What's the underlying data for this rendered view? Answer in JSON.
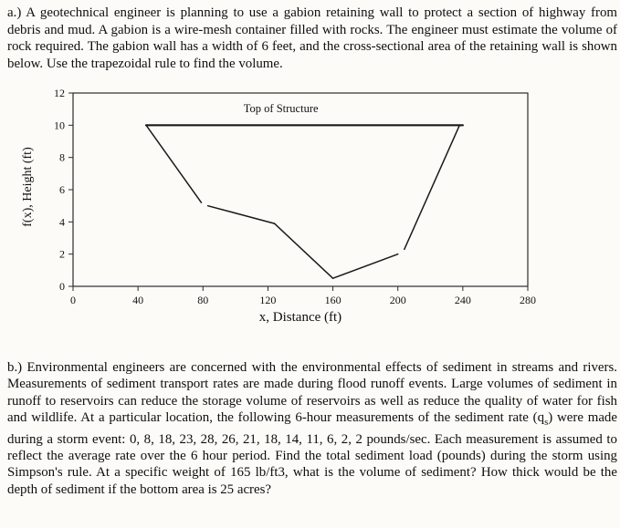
{
  "page": {
    "background": "#fcfbf7",
    "text_color": "#0e0e0e"
  },
  "problem_a": {
    "text": "a.) A geotechnical engineer is planning to use a gabion retaining wall to protect a section of highway from debris and mud. A gabion is a wire-mesh container filled with rocks. The engineer must estimate the volume of rock required. The gabion wall has a width of 6 feet, and the cross-sectional area of the retaining wall is shown below. Use the trapezoidal rule to find the volume."
  },
  "problem_b": {
    "text_before_sub": "b.) Environmental engineers are concerned with the environmental effects of sediment in streams and rivers. Measurements of sediment transport rates are made during flood runoff events. Large volumes of sediment in runoff to reservoirs can reduce the storage volume of reservoirs as well as reduce the quality of water for fish and wildlife. At a particular location, the following 6-hour measurements of the sediment rate (q",
    "sub": "s",
    "text_after_sub": ") were made during a storm event: 0, 8, 18, 23, 28, 26, 21, 18, 14, 11, 6, 2, 2 pounds/sec. Each measurement is assumed to reflect the average rate over the 6 hour period. Find the total sediment load (pounds) during the storm using Simpson's rule. At a specific weight of 165 lb/ft3, what is the volume of sediment? How thick would be the depth of sediment if the bottom area is 25 acres?"
  },
  "chart_data": {
    "type": "line",
    "title": "",
    "xlabel": "x, Distance (ft)",
    "ylabel": "f(x), Height (ft)",
    "xlim": [
      0,
      280
    ],
    "ylim": [
      0,
      12
    ],
    "xticks": [
      0,
      40,
      80,
      120,
      160,
      200,
      240,
      280
    ],
    "yticks": [
      0,
      2,
      4,
      6,
      8,
      10,
      12
    ],
    "grid": false,
    "legend": "none",
    "line_color": "#1a1a1a",
    "annotation": {
      "label": "Top of Structure",
      "x": 128,
      "y": 10.8
    },
    "series": [
      {
        "name": "top-of-structure",
        "width": 2.2,
        "points": [
          [
            45,
            10
          ],
          [
            240,
            10
          ]
        ]
      },
      {
        "name": "left-slope-upper",
        "width": 1.5,
        "points": [
          [
            45,
            10
          ],
          [
            79,
            5.2
          ]
        ]
      },
      {
        "name": "left-slope-middle",
        "width": 1.5,
        "points": [
          [
            83,
            5.0
          ],
          [
            124,
            3.9
          ]
        ]
      },
      {
        "name": "left-slope-lower",
        "width": 1.5,
        "points": [
          [
            124,
            3.9
          ],
          [
            160,
            0.5
          ]
        ]
      },
      {
        "name": "right-slope-lower",
        "width": 1.5,
        "points": [
          [
            160,
            0.5
          ],
          [
            200,
            2.0
          ]
        ]
      },
      {
        "name": "right-slope-upper",
        "width": 1.5,
        "points": [
          [
            204,
            2.3
          ],
          [
            238,
            10
          ]
        ]
      }
    ]
  }
}
